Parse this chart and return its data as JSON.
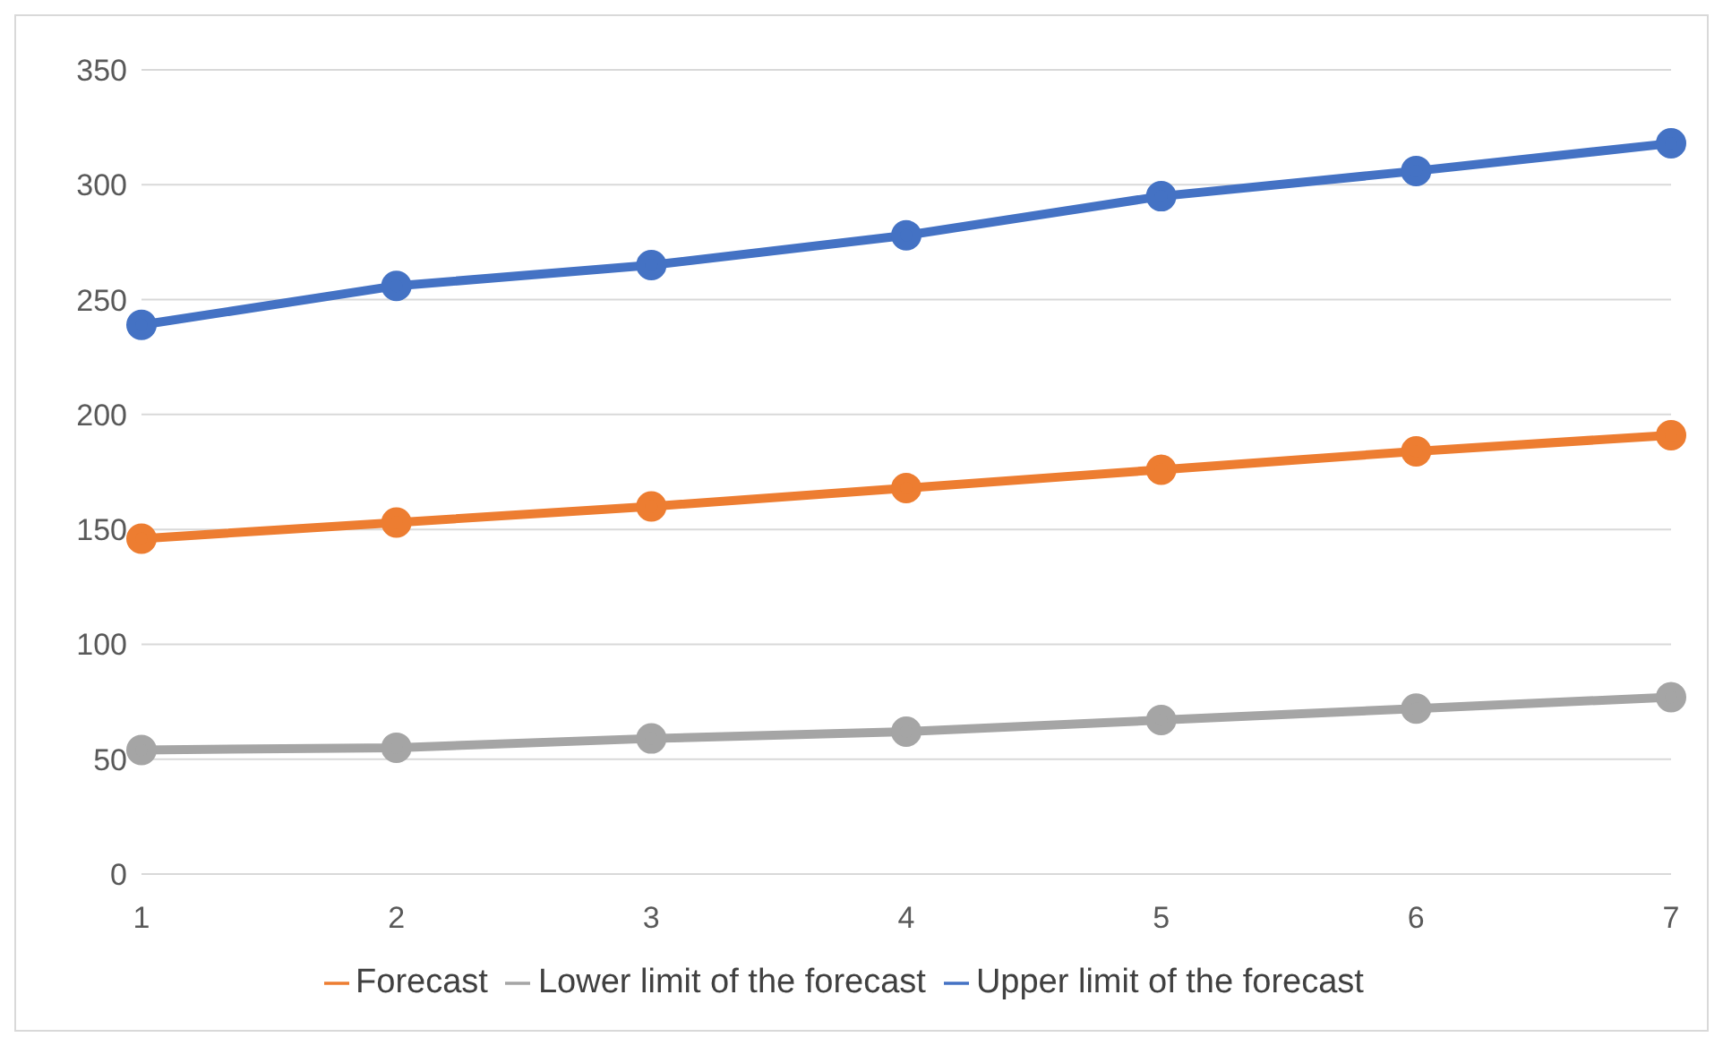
{
  "chart_data": {
    "type": "line",
    "categories": [
      "1",
      "2",
      "3",
      "4",
      "5",
      "6",
      "7"
    ],
    "series": [
      {
        "name": "Upper limit of the forecast",
        "color": "#4472c4",
        "values": [
          239,
          256,
          265,
          278,
          295,
          306,
          318
        ]
      },
      {
        "name": "Forecast",
        "color": "#ed7d31",
        "values": [
          146,
          153,
          160,
          168,
          176,
          184,
          191
        ]
      },
      {
        "name": "Lower limit of the forecast",
        "color": "#a5a5a5",
        "values": [
          54,
          55,
          59,
          62,
          67,
          72,
          77
        ]
      }
    ],
    "ylim": [
      0,
      350
    ],
    "yticks": [
      0,
      50,
      100,
      150,
      200,
      250,
      300,
      350
    ],
    "grid": "y",
    "legend": "bottom",
    "marker": "circle",
    "line_style": "solid"
  }
}
